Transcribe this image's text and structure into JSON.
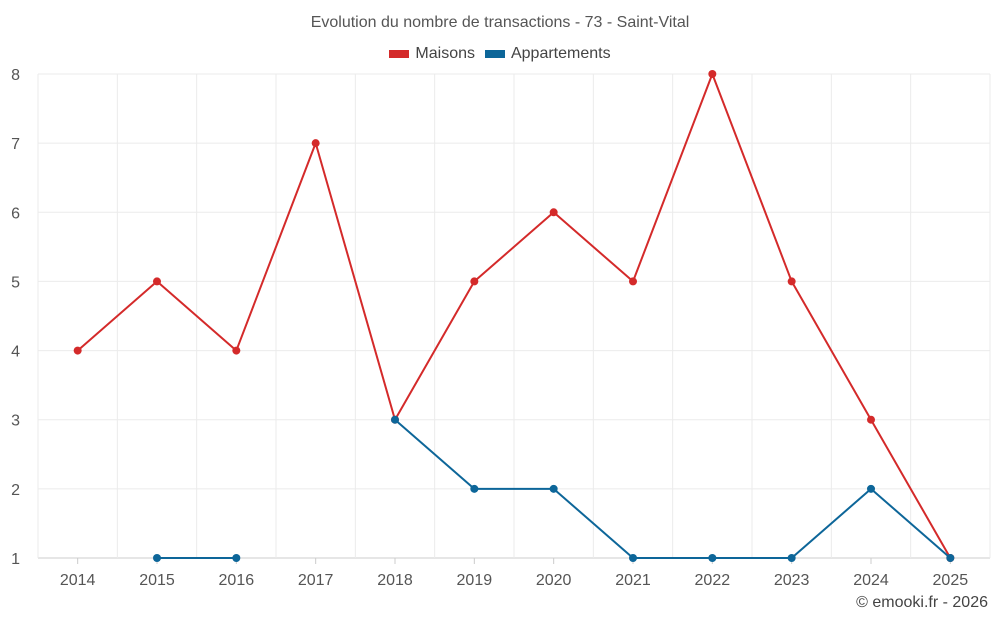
{
  "chart_data": {
    "type": "line",
    "title": "Evolution du nombre de transactions - 73 - Saint-Vital",
    "categories": [
      "2014",
      "2015",
      "2016",
      "2017",
      "2018",
      "2019",
      "2020",
      "2021",
      "2022",
      "2023",
      "2024",
      "2025"
    ],
    "series": [
      {
        "name": "Maisons",
        "color": "#d42a2a",
        "values": [
          4,
          5,
          4,
          7,
          3,
          5,
          6,
          5,
          8,
          5,
          3,
          1
        ]
      },
      {
        "name": "Appartements",
        "color": "#0d6699",
        "values": [
          null,
          1,
          1,
          null,
          3,
          2,
          2,
          1,
          1,
          1,
          2,
          1
        ]
      }
    ],
    "yticks": [
      1,
      2,
      3,
      4,
      5,
      6,
      7,
      8
    ],
    "ylim": [
      1,
      8
    ],
    "xlabel": "",
    "ylabel": "",
    "grid": true,
    "legend_position": "top-center"
  },
  "footer": {
    "credit": "© emooki.fr - 2026"
  }
}
